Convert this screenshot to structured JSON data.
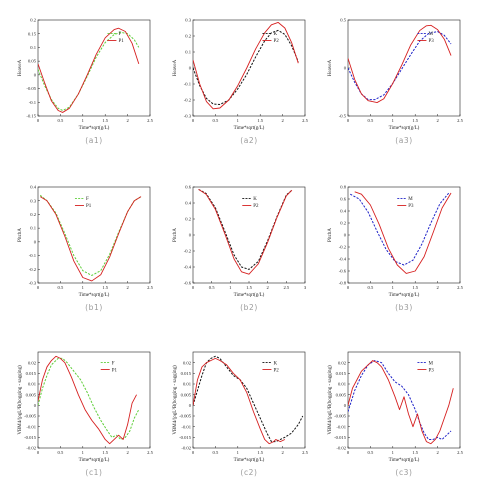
{
  "colors": {
    "axis": "#222222",
    "red": "#d62020",
    "green": "#5fce3a",
    "blue": "#1e22c8",
    "black": "#111111",
    "label": "#9a9a9a"
  },
  "chart_data": [
    {
      "id": "a1",
      "panel_label": "(a1)",
      "type": "line",
      "xlabel": "Time*sqrt(g/L)",
      "ylabel": "HeaveA",
      "xlim": [
        0,
        2.5
      ],
      "ylim": [
        -0.15,
        0.2
      ],
      "xticks": [
        "0",
        "0.5",
        "1",
        "1.5",
        "2",
        "2.5"
      ],
      "yticks": [
        "-0.15",
        "-0.1",
        "-0.05",
        "0",
        "0.05",
        "0.1",
        "0.15",
        "0.2"
      ],
      "series": [
        {
          "name": "F",
          "style": "dashed",
          "color": "#5fce3a",
          "x": [
            0,
            0.15,
            0.3,
            0.45,
            0.55,
            0.7,
            0.9,
            1.1,
            1.3,
            1.5,
            1.7,
            1.85,
            2.0,
            2.15,
            2.25
          ],
          "y": [
            0.02,
            -0.04,
            -0.09,
            -0.122,
            -0.13,
            -0.118,
            -0.07,
            -0.005,
            0.065,
            0.118,
            0.147,
            0.155,
            0.15,
            0.128,
            0.1
          ]
        },
        {
          "name": "P1",
          "style": "solid",
          "color": "#d62020",
          "x": [
            0,
            0.15,
            0.3,
            0.45,
            0.55,
            0.7,
            0.9,
            1.1,
            1.3,
            1.5,
            1.7,
            1.8,
            1.95,
            2.1,
            2.25
          ],
          "y": [
            0.04,
            -0.03,
            -0.095,
            -0.13,
            -0.137,
            -0.122,
            -0.07,
            0.0,
            0.075,
            0.135,
            0.165,
            0.17,
            0.158,
            0.115,
            0.04
          ]
        }
      ]
    },
    {
      "id": "a2",
      "panel_label": "(a2)",
      "type": "line",
      "xlabel": "Time*sqrt(g/L)",
      "ylabel": "HeaveA",
      "xlim": [
        0,
        2.5
      ],
      "ylim": [
        -0.3,
        0.3
      ],
      "xticks": [
        "0",
        "0.5",
        "1",
        "1.5",
        "2",
        "2.5"
      ],
      "yticks": [
        "-0.3",
        "-0.2",
        "-0.1",
        "0",
        "0.1",
        "0.2",
        "0.3"
      ],
      "series": [
        {
          "name": "K",
          "style": "dashed",
          "color": "#111111",
          "x": [
            0,
            0.15,
            0.3,
            0.45,
            0.6,
            0.8,
            1.0,
            1.2,
            1.4,
            1.6,
            1.75,
            1.9,
            2.05,
            2.2,
            2.35
          ],
          "y": [
            0.0,
            -0.11,
            -0.19,
            -0.225,
            -0.228,
            -0.2,
            -0.13,
            -0.04,
            0.07,
            0.17,
            0.22,
            0.235,
            0.21,
            0.14,
            0.04
          ]
        },
        {
          "name": "P2",
          "style": "solid",
          "color": "#d62020",
          "x": [
            0,
            0.15,
            0.3,
            0.45,
            0.6,
            0.8,
            1.0,
            1.2,
            1.4,
            1.6,
            1.75,
            1.9,
            2.05,
            2.2,
            2.35
          ],
          "y": [
            0.05,
            -0.1,
            -0.21,
            -0.255,
            -0.25,
            -0.2,
            -0.11,
            0.0,
            0.12,
            0.22,
            0.27,
            0.285,
            0.25,
            0.16,
            0.03
          ]
        }
      ]
    },
    {
      "id": "a3",
      "panel_label": "(a3)",
      "type": "line",
      "xlabel": "Time*sqrt(g/L)",
      "ylabel": "HeaveA",
      "xlim": [
        0,
        2.5
      ],
      "ylim": [
        -0.5,
        0.5
      ],
      "xticks": [
        "0",
        "0.5",
        "1",
        "1.5",
        "2",
        "2.5"
      ],
      "yticks": [
        "-0.5",
        "0",
        "0.5"
      ],
      "series": [
        {
          "name": "M",
          "style": "dashed",
          "color": "#1e22c8",
          "x": [
            0,
            0.15,
            0.3,
            0.45,
            0.6,
            0.8,
            1.0,
            1.2,
            1.4,
            1.6,
            1.8,
            2.0,
            2.15,
            2.3
          ],
          "y": [
            0.0,
            -0.15,
            -0.27,
            -0.33,
            -0.33,
            -0.28,
            -0.16,
            -0.01,
            0.14,
            0.28,
            0.36,
            0.38,
            0.34,
            0.25
          ]
        },
        {
          "name": "P3",
          "style": "solid",
          "color": "#d62020",
          "x": [
            0,
            0.15,
            0.3,
            0.45,
            0.65,
            0.8,
            1.0,
            1.2,
            1.4,
            1.6,
            1.75,
            1.85,
            2.0,
            2.15,
            2.3
          ],
          "y": [
            0.1,
            -0.12,
            -0.27,
            -0.34,
            -0.36,
            -0.32,
            -0.16,
            0.03,
            0.24,
            0.39,
            0.44,
            0.445,
            0.4,
            0.3,
            0.13
          ]
        }
      ]
    },
    {
      "id": "b1",
      "panel_label": "(b1)",
      "type": "line",
      "xlabel": "Time*sqrt(g/L)",
      "ylabel": "PitchA",
      "xlim": [
        0,
        2.5
      ],
      "ylim": [
        -0.3,
        0.4
      ],
      "xticks": [
        "0",
        "0.5",
        "1",
        "1.5",
        "2",
        "2.5"
      ],
      "yticks": [
        "-0.3",
        "-0.2",
        "-0.1",
        "0",
        "0.1",
        "0.2",
        "0.3",
        "0.4"
      ],
      "series": [
        {
          "name": "F",
          "style": "dashed",
          "color": "#5fce3a",
          "x": [
            0.05,
            0.2,
            0.4,
            0.6,
            0.8,
            1.0,
            1.2,
            1.4,
            1.6,
            1.8,
            2.0,
            2.15,
            2.3
          ],
          "y": [
            0.34,
            0.3,
            0.21,
            0.06,
            -0.1,
            -0.21,
            -0.245,
            -0.21,
            -0.09,
            0.07,
            0.22,
            0.3,
            0.33
          ]
        },
        {
          "name": "P1",
          "style": "solid",
          "color": "#d62020",
          "x": [
            0.05,
            0.2,
            0.4,
            0.6,
            0.8,
            1.0,
            1.2,
            1.4,
            1.6,
            1.8,
            2.0,
            2.15,
            2.3
          ],
          "y": [
            0.33,
            0.3,
            0.2,
            0.04,
            -0.14,
            -0.26,
            -0.285,
            -0.24,
            -0.11,
            0.06,
            0.22,
            0.3,
            0.33
          ]
        }
      ]
    },
    {
      "id": "b2",
      "panel_label": "(b2)",
      "type": "line",
      "xlabel": "Time*sqrt(g/L)",
      "ylabel": "PitchA",
      "xlim": [
        0,
        3
      ],
      "ylim": [
        -0.6,
        0.6
      ],
      "xticks": [
        "0",
        "0.5",
        "1",
        "1.5",
        "2",
        "2.5",
        "3"
      ],
      "yticks": [
        "-0.6",
        "-0.4",
        "-0.2",
        "0",
        "0.2",
        "0.4",
        "0.6"
      ],
      "series": [
        {
          "name": "K",
          "style": "dashed",
          "color": "#111111",
          "x": [
            0.15,
            0.35,
            0.6,
            0.85,
            1.1,
            1.3,
            1.5,
            1.75,
            2.0,
            2.25,
            2.5,
            2.65
          ],
          "y": [
            0.57,
            0.52,
            0.34,
            0.05,
            -0.25,
            -0.4,
            -0.43,
            -0.33,
            -0.07,
            0.23,
            0.5,
            0.56
          ]
        },
        {
          "name": "P2",
          "style": "solid",
          "color": "#d62020",
          "x": [
            0.15,
            0.35,
            0.6,
            0.85,
            1.1,
            1.3,
            1.5,
            1.75,
            2.0,
            2.25,
            2.5,
            2.65
          ],
          "y": [
            0.57,
            0.51,
            0.32,
            0.02,
            -0.3,
            -0.46,
            -0.49,
            -0.36,
            -0.09,
            0.22,
            0.49,
            0.56
          ]
        }
      ]
    },
    {
      "id": "b3",
      "panel_label": "(b3)",
      "type": "line",
      "xlabel": "Time*sqrt(g/L)",
      "ylabel": "PitchA",
      "xlim": [
        0,
        2.5
      ],
      "ylim": [
        -0.8,
        0.8
      ],
      "xticks": [
        "0",
        "0.5",
        "1",
        "1.5",
        "2",
        "2.5"
      ],
      "yticks": [
        "-0.8",
        "-0.6",
        "-0.4",
        "-0.2",
        "0",
        "0.2",
        "0.4",
        "0.6",
        "0.8"
      ],
      "series": [
        {
          "name": "M",
          "style": "dashed",
          "color": "#1e22c8",
          "x": [
            0.05,
            0.25,
            0.45,
            0.65,
            0.85,
            1.05,
            1.25,
            1.45,
            1.65,
            1.85,
            2.05,
            2.25
          ],
          "y": [
            0.68,
            0.6,
            0.38,
            0.06,
            -0.24,
            -0.44,
            -0.5,
            -0.42,
            -0.15,
            0.2,
            0.52,
            0.7
          ]
        },
        {
          "name": "P3",
          "style": "solid",
          "color": "#d62020",
          "x": [
            0.15,
            0.3,
            0.5,
            0.7,
            0.9,
            1.1,
            1.3,
            1.5,
            1.7,
            1.9,
            2.1,
            2.3
          ],
          "y": [
            0.72,
            0.68,
            0.5,
            0.17,
            -0.22,
            -0.5,
            -0.64,
            -0.6,
            -0.36,
            0.04,
            0.45,
            0.7
          ]
        }
      ]
    },
    {
      "id": "c1",
      "panel_label": "(c1)",
      "type": "line",
      "xlabel": "Time*sqrt(g/L)",
      "ylabel": "VBM4/(ρgL³B(hogging - sagging)",
      "xlim": [
        0,
        2.5
      ],
      "ylim": [
        -0.02,
        0.025
      ],
      "xticks": [
        "0",
        "0.5",
        "1",
        "1.5",
        "2",
        "2.5"
      ],
      "yticks": [
        "-0.02",
        "-0.015",
        "-0.01",
        "-0.005",
        "0",
        "0.005",
        "0.01",
        "0.015",
        "0.02"
      ],
      "series": [
        {
          "name": "F",
          "style": "dashed",
          "color": "#5fce3a",
          "x": [
            0,
            0.1,
            0.2,
            0.3,
            0.45,
            0.55,
            0.65,
            0.8,
            0.95,
            1.1,
            1.25,
            1.4,
            1.55,
            1.65,
            1.75,
            1.85,
            1.95,
            2.05,
            2.15,
            2.25
          ],
          "y": [
            0.0,
            0.008,
            0.014,
            0.019,
            0.022,
            0.022,
            0.02,
            0.016,
            0.012,
            0.006,
            -0.001,
            -0.007,
            -0.012,
            -0.015,
            -0.014,
            -0.016,
            -0.015,
            -0.012,
            -0.006,
            -0.002
          ]
        },
        {
          "name": "P1",
          "style": "solid",
          "color": "#d62020",
          "x": [
            0,
            0.1,
            0.2,
            0.3,
            0.4,
            0.5,
            0.6,
            0.75,
            0.9,
            1.05,
            1.2,
            1.35,
            1.5,
            1.6,
            1.7,
            1.8,
            1.9,
            2.0,
            2.1,
            2.2
          ],
          "y": [
            0.002,
            0.012,
            0.018,
            0.021,
            0.023,
            0.022,
            0.02,
            0.013,
            0.005,
            -0.002,
            -0.007,
            -0.011,
            -0.016,
            -0.018,
            -0.016,
            -0.014,
            -0.016,
            -0.009,
            0.001,
            0.005
          ]
        }
      ]
    },
    {
      "id": "c2",
      "panel_label": "(c2)",
      "type": "line",
      "xlabel": "Time*sqrt(g/L)",
      "ylabel": "VBM4/(ρgL³B(hogging - sagging)",
      "xlim": [
        0,
        2.5
      ],
      "ylim": [
        -0.02,
        0.025
      ],
      "xticks": [
        "0",
        "0.5",
        "1",
        "1.5",
        "2",
        "2.5"
      ],
      "yticks": [
        "-0.02",
        "-0.015",
        "-0.01",
        "-0.005",
        "0",
        "0.005",
        "0.01",
        "0.015",
        "0.02"
      ],
      "series": [
        {
          "name": "K",
          "style": "dashed",
          "color": "#111111",
          "x": [
            0,
            0.1,
            0.2,
            0.3,
            0.4,
            0.5,
            0.6,
            0.75,
            0.9,
            1.05,
            1.2,
            1.35,
            1.5,
            1.65,
            1.75,
            1.85,
            1.95,
            2.05,
            2.2,
            2.35,
            2.45
          ],
          "y": [
            0.0,
            0.007,
            0.014,
            0.02,
            0.022,
            0.023,
            0.022,
            0.018,
            0.014,
            0.012,
            0.008,
            0.001,
            -0.006,
            -0.013,
            -0.017,
            -0.017,
            -0.016,
            -0.015,
            -0.013,
            -0.009,
            -0.005
          ]
        },
        {
          "name": "P2",
          "style": "solid",
          "color": "#d62020",
          "x": [
            0,
            0.1,
            0.2,
            0.3,
            0.4,
            0.5,
            0.6,
            0.75,
            0.9,
            1.05,
            1.2,
            1.35,
            1.5,
            1.6,
            1.7,
            1.8,
            1.85,
            1.95,
            2.05
          ],
          "y": [
            0.0,
            0.012,
            0.018,
            0.02,
            0.021,
            0.022,
            0.021,
            0.019,
            0.015,
            0.012,
            0.006,
            -0.003,
            -0.011,
            -0.016,
            -0.018,
            -0.017,
            -0.016,
            -0.017,
            -0.016
          ]
        }
      ]
    },
    {
      "id": "c3",
      "panel_label": "(c3)",
      "type": "line",
      "xlabel": "Time*sqrt(g/L)",
      "ylabel": "VBM4/(ρgL³B(hogging - sagging)",
      "xlim": [
        0,
        2.5
      ],
      "ylim": [
        -0.02,
        0.025
      ],
      "xticks": [
        "0",
        "0.5",
        "1",
        "1.5",
        "2",
        "2.5"
      ],
      "yticks": [
        "-0.02",
        "-0.015",
        "-0.01",
        "-0.005",
        "0",
        "0.005",
        "0.01",
        "0.015",
        "0.02"
      ],
      "series": [
        {
          "name": "M",
          "style": "dashed",
          "color": "#1e22c8",
          "x": [
            0,
            0.15,
            0.3,
            0.45,
            0.6,
            0.75,
            0.9,
            1.05,
            1.2,
            1.35,
            1.5,
            1.6,
            1.7,
            1.8,
            1.9,
            2.0,
            2.1,
            2.2,
            2.3
          ],
          "y": [
            -0.003,
            0.007,
            0.014,
            0.019,
            0.021,
            0.02,
            0.015,
            0.011,
            0.009,
            0.005,
            -0.002,
            -0.008,
            -0.013,
            -0.016,
            -0.016,
            -0.015,
            -0.016,
            -0.014,
            -0.012
          ]
        },
        {
          "name": "P3",
          "style": "solid",
          "color": "#d62020",
          "x": [
            0,
            0.1,
            0.2,
            0.3,
            0.45,
            0.55,
            0.65,
            0.75,
            0.9,
            1.05,
            1.15,
            1.25,
            1.35,
            1.45,
            1.55,
            1.65,
            1.75,
            1.85,
            1.95,
            2.05,
            2.15,
            2.25,
            2.35
          ],
          "y": [
            0.0,
            0.008,
            0.012,
            0.016,
            0.019,
            0.021,
            0.02,
            0.018,
            0.012,
            0.004,
            -0.002,
            0.004,
            -0.004,
            -0.01,
            -0.004,
            -0.012,
            -0.017,
            -0.018,
            -0.016,
            -0.012,
            -0.006,
            0.0,
            0.008
          ]
        }
      ]
    }
  ]
}
